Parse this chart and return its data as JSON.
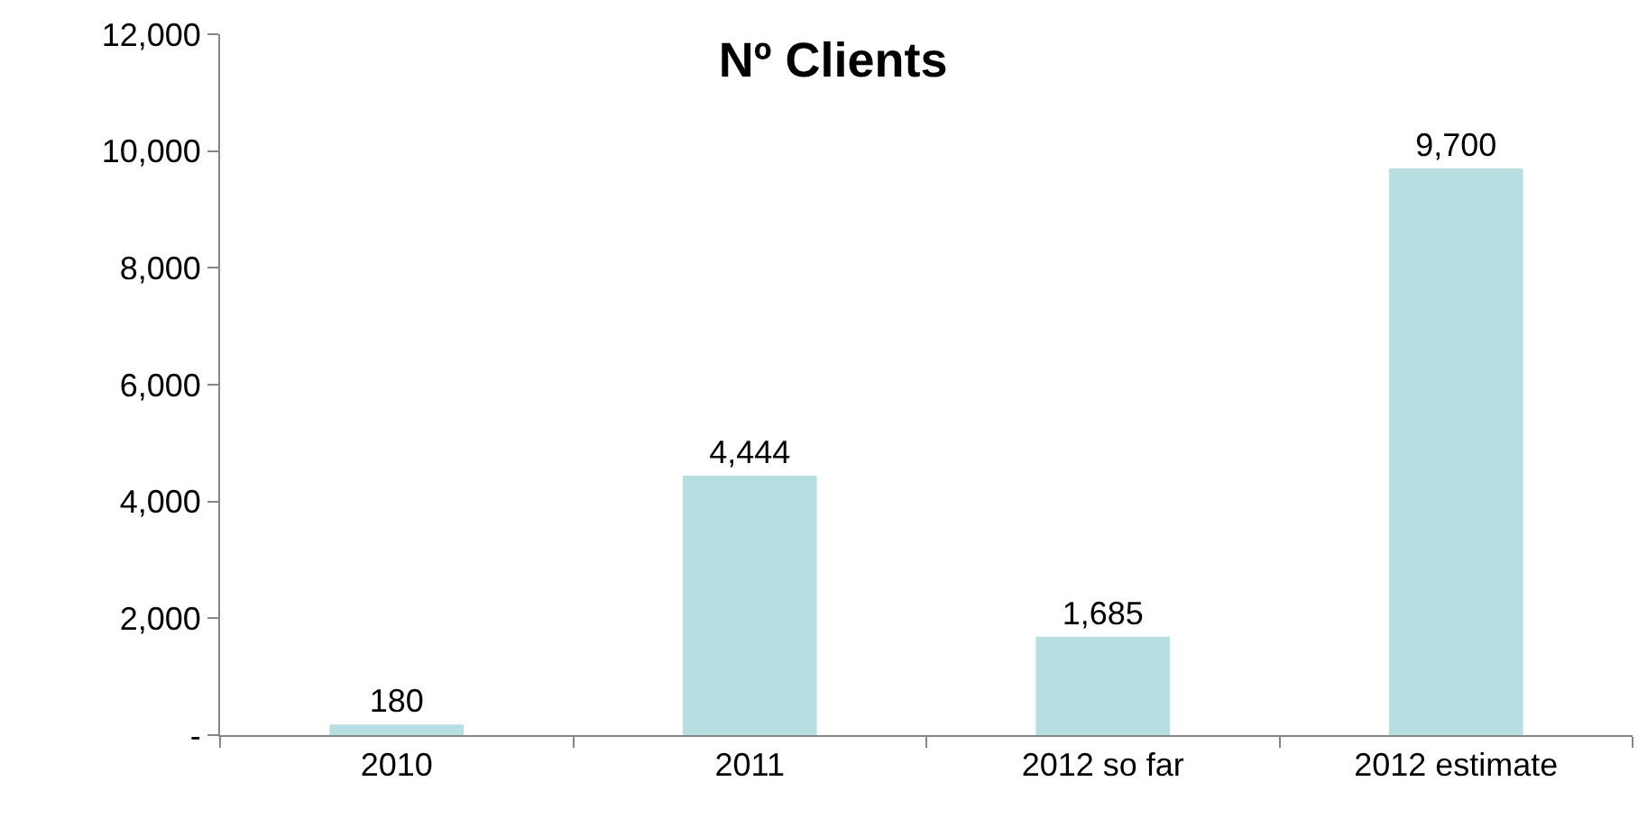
{
  "chart_data": {
    "type": "bar",
    "title": "Nº Clients",
    "categories": [
      "2010",
      "2011",
      "2012 so far",
      "2012 estimate"
    ],
    "values": [
      180,
      4444,
      1685,
      9700
    ],
    "value_labels": [
      "180",
      "4,444",
      "1,685",
      "9,700"
    ],
    "color": "#b7dee1",
    "ylim": [
      0,
      12000
    ],
    "yticks": [
      {
        "value": 0,
        "label": "-"
      },
      {
        "value": 2000,
        "label": "2,000"
      },
      {
        "value": 4000,
        "label": "4,000"
      },
      {
        "value": 6000,
        "label": "6,000"
      },
      {
        "value": 8000,
        "label": "8,000"
      },
      {
        "value": 10000,
        "label": "10,000"
      },
      {
        "value": 12000,
        "label": "12,000"
      }
    ],
    "grid": false
  }
}
